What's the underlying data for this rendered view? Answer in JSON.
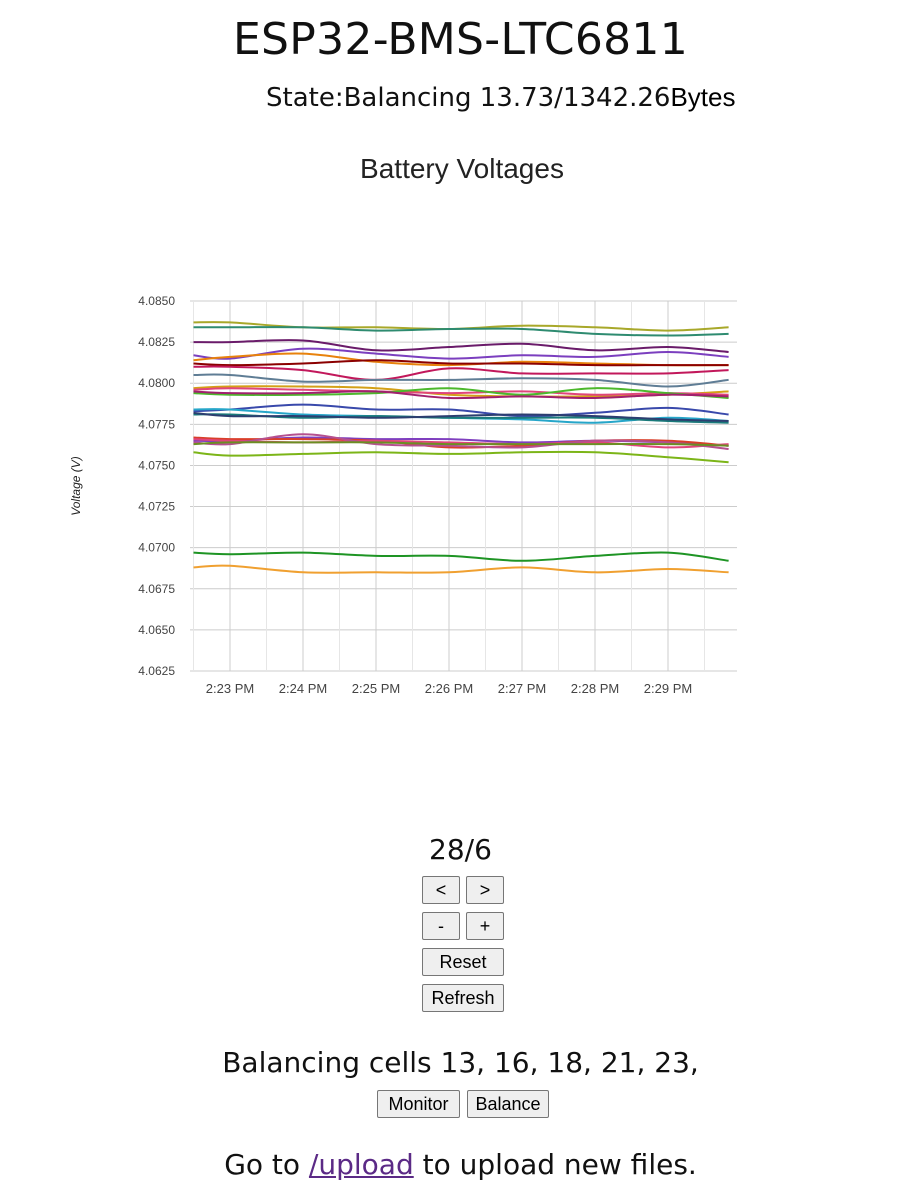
{
  "page": {
    "title": "ESP32-BMS-LTC6811",
    "state_label": "State:Balancing 13.73/1342.26",
    "state_unit": "Bytes"
  },
  "chart_data": {
    "type": "line",
    "title": "Battery Voltages",
    "xlabel": "",
    "ylabel": "Voltage (V)",
    "ylim": [
      4.0625,
      4.085
    ],
    "y_ticks": [
      "4.0850",
      "4.0825",
      "4.0800",
      "4.0775",
      "4.0750",
      "4.0725",
      "4.0700",
      "4.0675",
      "4.0650",
      "4.0625"
    ],
    "x_ticks": [
      "2:23 PM",
      "2:24 PM",
      "2:25 PM",
      "2:26 PM",
      "2:27 PM",
      "2:28 PM",
      "2:29 PM"
    ],
    "x": [
      "2:22:30 PM",
      "2:23:00 PM",
      "2:24:00 PM",
      "2:25:00 PM",
      "2:26:00 PM",
      "2:27:00 PM",
      "2:28:00 PM",
      "2:29:00 PM",
      "2:29:50 PM"
    ],
    "grid": true,
    "legend": "none",
    "series": [
      {
        "color": "#a8a82a",
        "values": [
          4.0837,
          4.0837,
          4.0834,
          4.0834,
          4.0833,
          4.0835,
          4.0834,
          4.0832,
          4.0834
        ]
      },
      {
        "color": "#2e8b70",
        "values": [
          4.0834,
          4.0834,
          4.0834,
          4.0832,
          4.0833,
          4.0833,
          4.083,
          4.0829,
          4.083
        ]
      },
      {
        "color": "#6a1b6a",
        "values": [
          4.0825,
          4.0825,
          4.0826,
          4.082,
          4.0822,
          4.0824,
          4.082,
          4.0822,
          4.0819
        ]
      },
      {
        "color": "#7b3fbf",
        "values": [
          4.0817,
          4.0815,
          4.0821,
          4.0818,
          4.0815,
          4.0817,
          4.0816,
          4.0819,
          4.0816
        ]
      },
      {
        "color": "#e8820c",
        "values": [
          4.0814,
          4.0816,
          4.0818,
          4.0813,
          4.0811,
          4.0813,
          4.0812,
          4.0811,
          4.0811
        ]
      },
      {
        "color": "#8b0000",
        "values": [
          4.0812,
          4.0811,
          4.0812,
          4.0814,
          4.0812,
          4.0812,
          4.0811,
          4.0811,
          4.0811
        ]
      },
      {
        "color": "#c2185b",
        "values": [
          4.081,
          4.081,
          4.0808,
          4.0802,
          4.0809,
          4.0806,
          4.0806,
          4.0806,
          4.0808
        ]
      },
      {
        "color": "#5f7d95",
        "values": [
          4.0805,
          4.0805,
          4.0801,
          4.0802,
          4.0802,
          4.0803,
          4.0802,
          4.0798,
          4.0802
        ]
      },
      {
        "color": "#d4a017",
        "values": [
          4.0797,
          4.0798,
          4.0798,
          4.0797,
          4.0793,
          4.0792,
          4.0792,
          4.0793,
          4.0795
        ]
      },
      {
        "color": "#e0457b",
        "values": [
          4.0796,
          4.0797,
          4.0796,
          4.0795,
          4.0794,
          4.0795,
          4.0793,
          4.0794,
          4.0793
        ]
      },
      {
        "color": "#4cb82c",
        "values": [
          4.0794,
          4.0793,
          4.0793,
          4.0794,
          4.0797,
          4.0793,
          4.0797,
          4.0794,
          4.0791
        ]
      },
      {
        "color": "#a0206e",
        "values": [
          4.0795,
          4.0794,
          4.0794,
          4.0795,
          4.0791,
          4.0792,
          4.0791,
          4.0793,
          4.0792
        ]
      },
      {
        "color": "#3949ab",
        "values": [
          4.0783,
          4.0784,
          4.0787,
          4.0784,
          4.0784,
          4.078,
          4.0782,
          4.0785,
          4.0781
        ]
      },
      {
        "color": "#26a6c9",
        "values": [
          4.0784,
          4.0784,
          4.0781,
          4.078,
          4.0779,
          4.0778,
          4.0776,
          4.0779,
          4.0777
        ]
      },
      {
        "color": "#1a7a7a",
        "values": [
          4.0781,
          4.0781,
          4.0779,
          4.078,
          4.0779,
          4.0779,
          4.0779,
          4.0777,
          4.0776
        ]
      },
      {
        "color": "#2c3e70",
        "values": [
          4.0782,
          4.078,
          4.078,
          4.0779,
          4.078,
          4.0781,
          4.078,
          4.0778,
          4.0777
        ]
      },
      {
        "color": "#7f3fbf",
        "values": [
          4.0765,
          4.0765,
          4.0767,
          4.0766,
          4.0766,
          4.0764,
          4.0765,
          4.0764,
          4.0762
        ]
      },
      {
        "color": "#d93f2a",
        "values": [
          4.0767,
          4.0766,
          4.0766,
          4.0765,
          4.0761,
          4.0762,
          4.0765,
          4.0765,
          4.0762
        ]
      },
      {
        "color": "#e0457b",
        "values": [
          4.0766,
          4.0765,
          4.0764,
          4.0765,
          4.0764,
          4.0763,
          4.0764,
          4.0761,
          4.0763
        ]
      },
      {
        "color": "#b5508f",
        "values": [
          4.0764,
          4.0763,
          4.0769,
          4.0763,
          4.0762,
          4.0761,
          4.0765,
          4.0764,
          4.076
        ]
      },
      {
        "color": "#6b8e23",
        "values": [
          4.0763,
          4.0764,
          4.0764,
          4.0764,
          4.0763,
          4.0763,
          4.0763,
          4.0763,
          4.0762
        ]
      },
      {
        "color": "#7cb518",
        "values": [
          4.0758,
          4.0756,
          4.0757,
          4.0758,
          4.0757,
          4.0758,
          4.0758,
          4.0755,
          4.0752
        ]
      },
      {
        "color": "#1e9424",
        "values": [
          4.0697,
          4.0696,
          4.0697,
          4.0695,
          4.0695,
          4.0692,
          4.0695,
          4.0697,
          4.0692
        ]
      },
      {
        "color": "#f0a030",
        "values": [
          4.0688,
          4.0689,
          4.0685,
          4.0685,
          4.0685,
          4.0688,
          4.0685,
          4.0687,
          4.0685
        ]
      }
    ]
  },
  "controls": {
    "page_indicator": "28/6",
    "prev_label": "<",
    "next_label": ">",
    "minus_label": "-",
    "plus_label": "+",
    "reset_label": "Reset",
    "refresh_label": "Refresh"
  },
  "balancing": {
    "text": "Balancing cells 13, 16, 18, 21, 23,",
    "monitor_label": "Monitor",
    "balance_label": "Balance"
  },
  "footer": {
    "prefix": "Go to ",
    "link_text": "/upload",
    "suffix": " to upload new files."
  }
}
